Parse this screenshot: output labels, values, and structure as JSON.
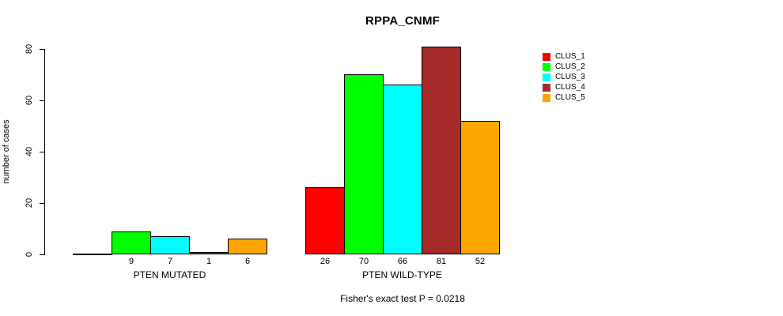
{
  "chart_data": {
    "type": "bar",
    "title": "RPPA_CNMF",
    "ylabel": "number of cases",
    "ylim": [
      0,
      80
    ],
    "yticks": [
      0,
      20,
      40,
      60,
      80
    ],
    "grid": false,
    "bar_border_color": "#000000",
    "series": [
      {
        "name": "CLUS_1",
        "color": "#FF0000"
      },
      {
        "name": "CLUS_2",
        "color": "#00FF00"
      },
      {
        "name": "CLUS_3",
        "color": "#00FFFF"
      },
      {
        "name": "CLUS_4",
        "color": "#A52A2A"
      },
      {
        "name": "CLUS_5",
        "color": "#FFA500"
      }
    ],
    "groups": [
      {
        "label": "PTEN MUTATED",
        "values": [
          0,
          9,
          7,
          1,
          6
        ],
        "value_labels": [
          "",
          "9",
          "7",
          "1",
          "6"
        ]
      },
      {
        "label": "PTEN WILD-TYPE",
        "values": [
          26,
          70,
          66,
          81,
          52
        ],
        "value_labels": [
          "26",
          "70",
          "66",
          "81",
          "52"
        ]
      }
    ],
    "legend_position": "right",
    "footer": "Fisher's exact test P = 0.0218"
  }
}
